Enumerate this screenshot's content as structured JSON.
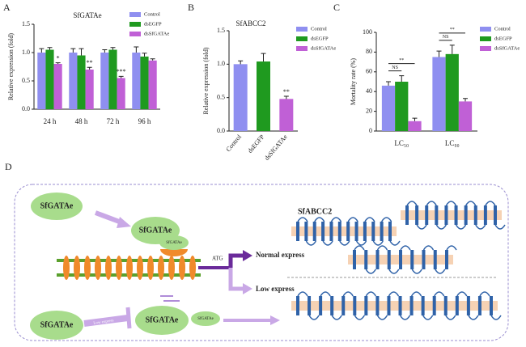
{
  "chart_data": [
    {
      "type": "bar",
      "panel": "A",
      "title": "SfGATAe",
      "y_label": "Relative expression (fold)",
      "categories": [
        "24 h",
        "48 h",
        "72 h",
        "96 h"
      ],
      "series": [
        {
          "name": "Control",
          "color": "#8f8ff0",
          "values": [
            1.0,
            1.0,
            1.0,
            1.0
          ],
          "errors": [
            0.07,
            0.07,
            0.05,
            0.1
          ]
        },
        {
          "name": "dsEGFP",
          "color": "#1f9a1f",
          "values": [
            1.05,
            0.95,
            1.05,
            0.93
          ],
          "errors": [
            0.04,
            0.12,
            0.04,
            0.06
          ]
        },
        {
          "name": "dsSfGATAe",
          "color": "#c060d6",
          "values": [
            0.8,
            0.7,
            0.55,
            0.86
          ],
          "errors": [
            0.02,
            0.04,
            0.03,
            0.03
          ],
          "significance": [
            "*",
            "**",
            "***",
            null
          ]
        }
      ],
      "ylim": [
        0,
        1.5
      ],
      "yticks": [
        {
          "value": 0,
          "label": "0.0"
        },
        {
          "value": 0.5,
          "label": "0.5"
        },
        {
          "value": 1,
          "label": "1.0"
        },
        {
          "value": 1.5,
          "label": "1.5"
        }
      ]
    },
    {
      "type": "bar",
      "panel": "B",
      "title": "SfABCC2",
      "y_label": "Relative expression (fold)",
      "categories": [
        "Control",
        "dsEGFP",
        "dsSfGATAe"
      ],
      "colors": [
        "#8f8ff0",
        "#1f9a1f",
        "#c060d6"
      ],
      "values": [
        1.0,
        1.04,
        0.48
      ],
      "errors": [
        0.05,
        0.12,
        0.04
      ],
      "significance": [
        null,
        null,
        "**"
      ],
      "ylim": [
        0,
        1.5
      ],
      "yticks": [
        {
          "value": 0,
          "label": "0.0"
        },
        {
          "value": 0.5,
          "label": "0.5"
        },
        {
          "value": 1,
          "label": "1.0"
        },
        {
          "value": 1.5,
          "label": "1.5"
        }
      ]
    },
    {
      "type": "bar",
      "panel": "C",
      "y_label": "Mortality rate (%)",
      "categories": [
        "LC₅₀",
        "LC₉₀"
      ],
      "series": [
        {
          "name": "Control",
          "color": "#8f8ff0",
          "values": [
            46,
            75
          ],
          "errors": [
            4,
            6
          ]
        },
        {
          "name": "dsEGFP",
          "color": "#1f9a1f",
          "values": [
            50,
            78
          ],
          "errors": [
            6,
            9
          ]
        },
        {
          "name": "dsSfGATAe",
          "color": "#c060d6",
          "values": [
            10,
            30
          ],
          "errors": [
            3,
            3
          ]
        }
      ],
      "comparisons": [
        {
          "category": 0,
          "series": [
            0,
            1
          ],
          "label": "NS"
        },
        {
          "category": 0,
          "series": [
            0,
            2
          ],
          "label": "**"
        },
        {
          "category": 1,
          "series": [
            0,
            1
          ],
          "label": "NS"
        },
        {
          "category": 1,
          "series": [
            0,
            2
          ],
          "label": "**"
        }
      ],
      "ylim": [
        0,
        100
      ],
      "yticks": [
        0,
        20,
        40,
        60,
        80,
        100
      ]
    }
  ],
  "diagram": {
    "panel": "D",
    "nodes": [
      "SfGATAe",
      "SfGATAe",
      "SfGATAe",
      "SfGATAe",
      "SfGATAe",
      "SfGATAe"
    ],
    "labels": {
      "atg": "ATG",
      "normal": "Normal express",
      "low": "Low express",
      "inhibit": "Low express",
      "protein": "SfABCC2"
    }
  }
}
